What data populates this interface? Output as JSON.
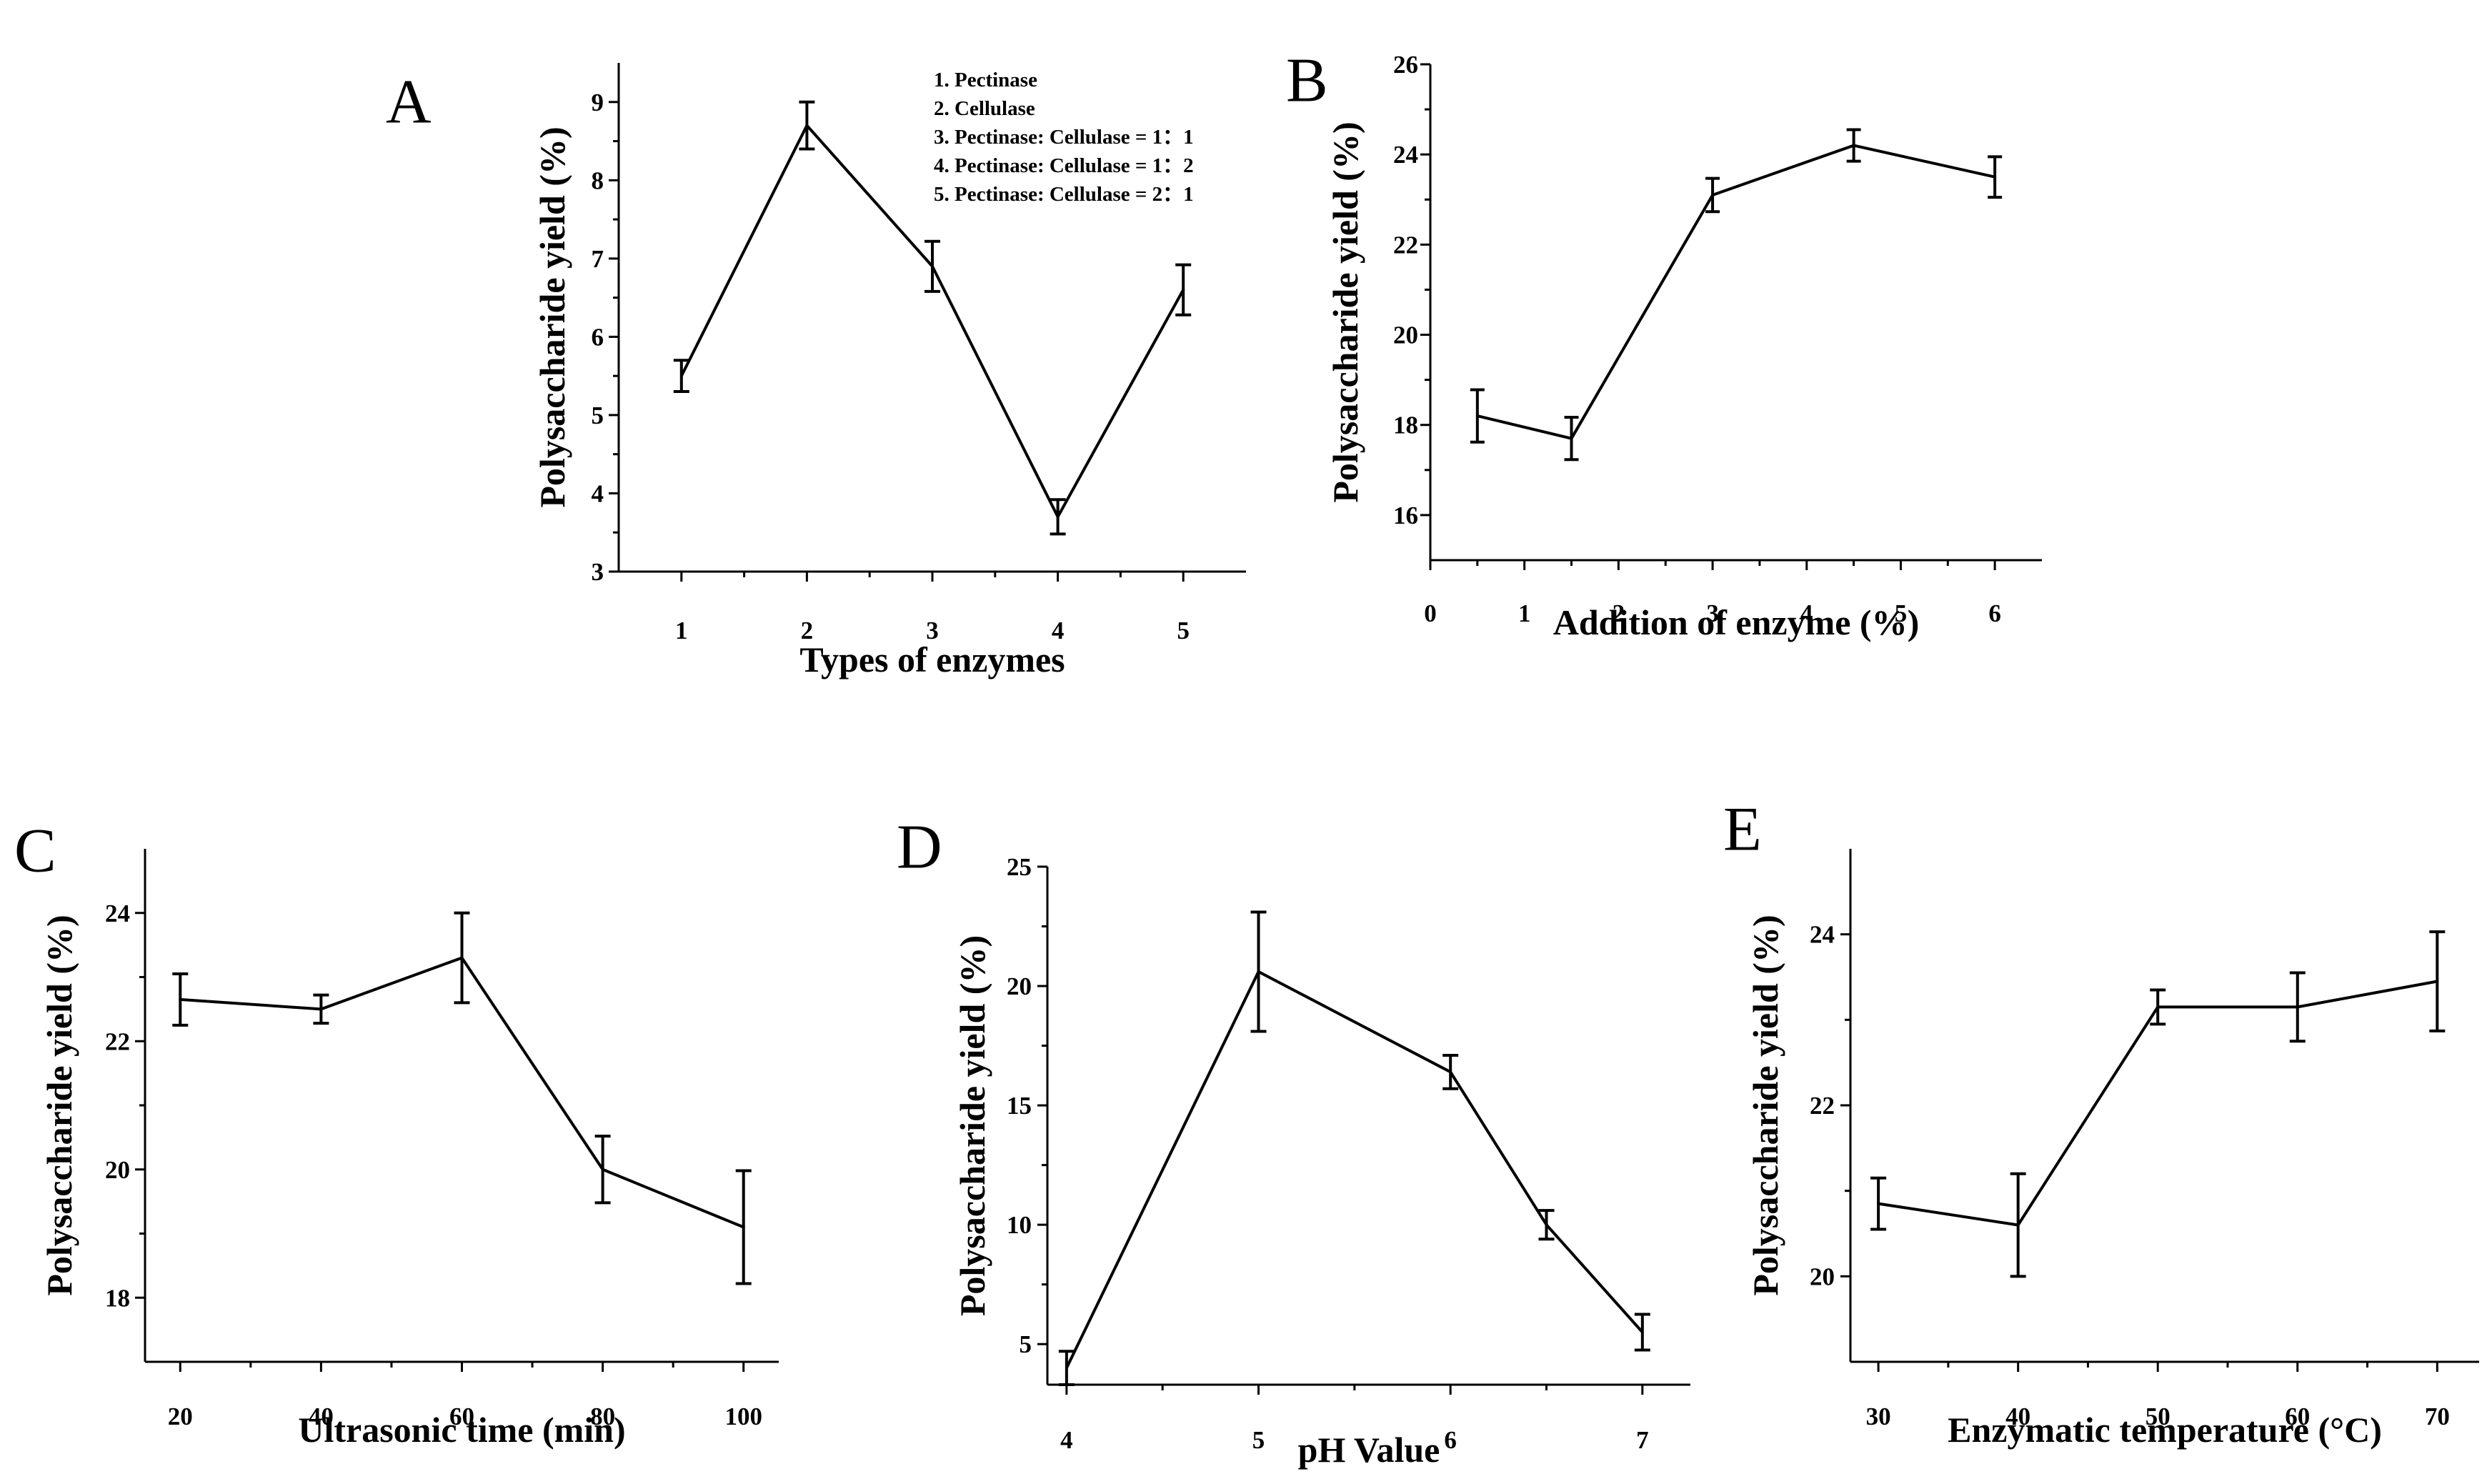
{
  "chart_data": [
    {
      "id": "A",
      "panel": "A",
      "type": "line",
      "title": "",
      "xlabel": "Types of enzymes",
      "ylabel": "Polysaccharide yield (%)",
      "xlim": [
        0.5,
        5.5
      ],
      "ylim": [
        3,
        9.5
      ],
      "xticks": [
        1,
        2,
        3,
        4,
        5
      ],
      "yticks": [
        3,
        4,
        5,
        6,
        7,
        8,
        9
      ],
      "x": [
        1,
        2,
        3,
        4,
        5
      ],
      "y": [
        5.5,
        8.7,
        6.9,
        3.7,
        6.6
      ],
      "err": [
        0.2,
        0.3,
        0.32,
        0.22,
        0.32
      ],
      "legend": [
        "1. Pectinase",
        "2. Cellulase",
        "3. Pectinase: Cellulase = 1：1",
        "4. Pectinase: Cellulase = 1：2",
        "5. Pectinase: Cellulase = 2：1"
      ],
      "legend_placement": "top-right"
    },
    {
      "id": "B",
      "panel": "B",
      "type": "line",
      "title": "",
      "xlabel": "Addition of enzyme (%)",
      "ylabel": "Polysaccharide yield (%)",
      "xlim": [
        0,
        6.5
      ],
      "ylim": [
        15,
        26
      ],
      "xticks": [
        0,
        1,
        2,
        3,
        4,
        5,
        6
      ],
      "yticks": [
        16,
        18,
        20,
        22,
        24,
        26
      ],
      "x": [
        0.5,
        1.5,
        3,
        4.5,
        6
      ],
      "y": [
        18.2,
        17.7,
        23.1,
        24.2,
        23.5
      ],
      "err": [
        0.58,
        0.47,
        0.37,
        0.35,
        0.45
      ]
    },
    {
      "id": "C",
      "panel": "C",
      "type": "line",
      "title": "",
      "xlabel": "Ultrasonic time (min)",
      "ylabel": "Polysaccharide yield (%)",
      "xlim": [
        15,
        105
      ],
      "ylim": [
        17,
        25
      ],
      "xticks": [
        20,
        40,
        60,
        80,
        100
      ],
      "yticks": [
        18,
        20,
        22,
        24
      ],
      "x": [
        20,
        40,
        60,
        80,
        100
      ],
      "y": [
        22.65,
        22.5,
        23.3,
        20.0,
        19.1
      ],
      "err": [
        0.4,
        0.22,
        0.7,
        0.52,
        0.88
      ]
    },
    {
      "id": "D",
      "panel": "D",
      "type": "line",
      "title": "",
      "xlabel": "pH Value",
      "ylabel": "Polysaccharide yield (%)",
      "xlim": [
        3.9,
        7.25
      ],
      "ylim": [
        3.3,
        25
      ],
      "xticks": [
        4,
        5,
        6,
        7
      ],
      "yticks": [
        5,
        10,
        15,
        20,
        25
      ],
      "x": [
        4,
        5,
        6,
        6.5,
        7
      ],
      "y": [
        4.0,
        20.6,
        16.4,
        10.0,
        5.5
      ],
      "err": [
        0.7,
        2.5,
        0.7,
        0.6,
        0.75
      ]
    },
    {
      "id": "E",
      "panel": "E",
      "type": "line",
      "title": "",
      "xlabel": "Enzymatic temperature (°C)",
      "ylabel": "Polysaccharide yield (%)",
      "xlim": [
        28,
        73
      ],
      "ylim": [
        19,
        25
      ],
      "xticks": [
        30,
        40,
        50,
        60,
        70
      ],
      "yticks": [
        20,
        22,
        24
      ],
      "x": [
        30,
        40,
        50,
        60,
        70
      ],
      "y": [
        20.85,
        20.6,
        23.15,
        23.15,
        23.45
      ],
      "err": [
        0.3,
        0.6,
        0.2,
        0.4,
        0.58
      ]
    }
  ]
}
